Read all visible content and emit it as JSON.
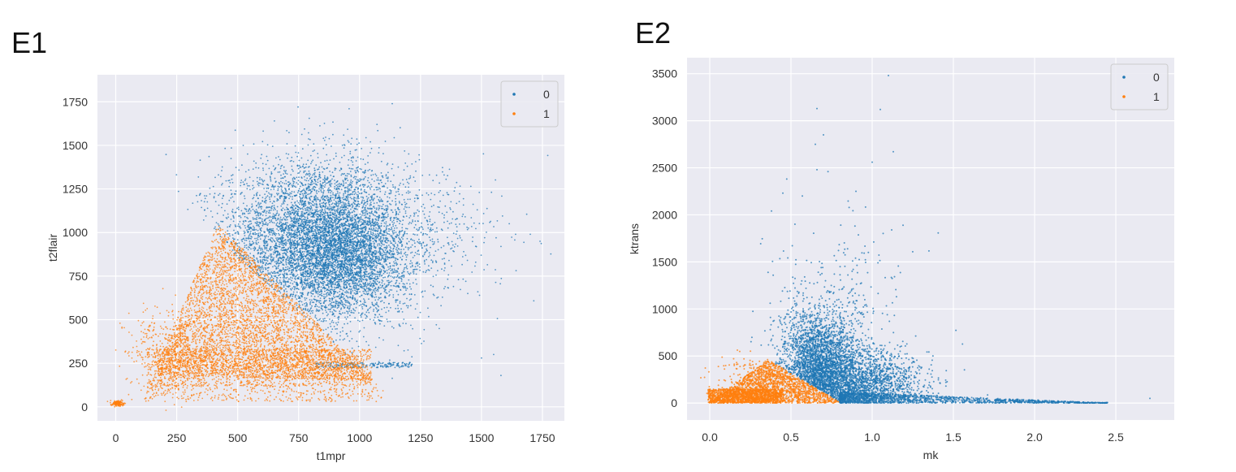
{
  "panels": [
    {
      "label": "E1"
    },
    {
      "label": "E2"
    }
  ],
  "chart_data": [
    {
      "type": "scatter",
      "title": "",
      "xlabel": "t1mpr",
      "ylabel": "t2flair",
      "xlim": [
        -75,
        1840
      ],
      "ylim": [
        -80,
        1905
      ],
      "xticks": [
        0,
        250,
        500,
        750,
        1000,
        1250,
        1500,
        1750
      ],
      "yticks": [
        0,
        250,
        500,
        750,
        1000,
        1250,
        1500,
        1750
      ],
      "grid": true,
      "legend": {
        "placement": "top-right"
      },
      "series": [
        {
          "name": "0",
          "color": "#1f77b4",
          "clusters": [
            {
              "kind": "gaussian",
              "center": [
                820,
                950
              ],
              "spread": [
                190,
                230
              ],
              "n": 5200,
              "rule": "above_line"
            },
            {
              "kind": "gaussian",
              "center": [
                950,
                850
              ],
              "spread": [
                110,
                160
              ],
              "n": 1800,
              "rule": "above_line"
            },
            {
              "kind": "uniform_band",
              "x": [
                820,
                1220
              ],
              "y": [
                225,
                255
              ],
              "n": 200,
              "rule": "none"
            },
            {
              "kind": "gaussian",
              "center": [
                1050,
                950
              ],
              "spread": [
                260,
                200
              ],
              "n": 1000,
              "rule": "above_line"
            },
            {
              "kind": "points",
              "points": [
                [
                  1700,
                  990
                ],
                [
                  1740,
                  950
                ],
                [
                  1640,
                  990
                ],
                [
                  1580,
                  920
                ],
                [
                  1560,
                  970
                ],
                [
                  1550,
                  300
                ],
                [
                  1500,
                  280
                ],
                [
                  1580,
                  180
                ]
              ]
            }
          ]
        },
        {
          "name": "1",
          "color": "#ff7f0e",
          "clusters": [
            {
              "kind": "triangle",
              "a": [
                150,
                180
              ],
              "b": [
                420,
                1050
              ],
              "c": [
                1060,
                150
              ],
              "n": 4200
            },
            {
              "kind": "uniform_band",
              "x": [
                130,
                1050
              ],
              "y": [
                120,
                330
              ],
              "n": 1300,
              "rule": "none"
            },
            {
              "kind": "gaussian",
              "center": [
                200,
                320
              ],
              "spread": [
                70,
                130
              ],
              "n": 400,
              "rule": "below_line"
            },
            {
              "kind": "gaussian",
              "center": [
                10,
                20
              ],
              "spread": [
                12,
                8
              ],
              "n": 150,
              "rule": "none"
            },
            {
              "kind": "uniform_band",
              "x": [
                120,
                1100
              ],
              "y": [
                30,
                130
              ],
              "n": 350,
              "rule": "none"
            }
          ]
        }
      ],
      "boundary": {
        "a": [
          390,
          1000
        ],
        "b": [
          1060,
          150
        ]
      }
    },
    {
      "type": "scatter",
      "title": "",
      "xlabel": "mk",
      "ylabel": "ktrans",
      "xlim": [
        -0.14,
        2.86
      ],
      "ylim": [
        -180,
        3670
      ],
      "xticks": [
        0.0,
        0.5,
        1.0,
        1.5,
        2.0,
        2.5
      ],
      "xtick_labels": [
        "0.0",
        "0.5",
        "1.0",
        "1.5",
        "2.0",
        "2.5"
      ],
      "yticks": [
        0,
        500,
        1000,
        1500,
        2000,
        2500,
        3000,
        3500
      ],
      "grid": true,
      "legend": {
        "placement": "top-right"
      },
      "series": [
        {
          "name": "0",
          "color": "#1f77b4",
          "clusters": [
            {
              "kind": "gaussian",
              "center": [
                0.68,
                350
              ],
              "spread": [
                0.12,
                300
              ],
              "n": 2600,
              "rule": "above_line"
            },
            {
              "kind": "gaussian",
              "center": [
                0.95,
                200
              ],
              "spread": [
                0.18,
                180
              ],
              "n": 1600,
              "rule": "above_line"
            },
            {
              "kind": "tail",
              "x": [
                0.8,
                2.45
              ],
              "y": [
                0,
                120
              ],
              "n": 1400
            },
            {
              "kind": "gaussian",
              "center": [
                0.75,
                900
              ],
              "spread": [
                0.2,
                500
              ],
              "n": 300,
              "rule": "above_line"
            },
            {
              "kind": "points",
              "points": [
                [
                  0.66,
                  3130
                ],
                [
                  1.1,
                  3480
                ],
                [
                  1.05,
                  3120
                ],
                [
                  1.13,
                  2670
                ],
                [
                  0.65,
                  2750
                ],
                [
                  0.7,
                  2850
                ],
                [
                  0.66,
                  2480
                ],
                [
                  1.0,
                  2560
                ],
                [
                  0.57,
                  2200
                ],
                [
                  0.45,
                  2230
                ],
                [
                  0.38,
                  2040
                ],
                [
                  0.9,
                  2250
                ],
                [
                  1.19,
                  1890
                ],
                [
                  1.12,
                  1840
                ],
                [
                  2.71,
                  50
                ]
              ]
            }
          ]
        },
        {
          "name": "1",
          "color": "#ff7f0e",
          "clusters": [
            {
              "kind": "triangle",
              "a": [
                -0.01,
                0
              ],
              "b": [
                0.36,
                460
              ],
              "c": [
                0.81,
                0
              ],
              "n": 1800
            },
            {
              "kind": "uniform_band",
              "x": [
                -0.01,
                0.45
              ],
              "y": [
                0,
                150
              ],
              "n": 1200,
              "rule": "none"
            },
            {
              "kind": "gaussian",
              "center": [
                0.25,
                300
              ],
              "spread": [
                0.12,
                150
              ],
              "n": 120,
              "rule": "below_line"
            }
          ]
        }
      ],
      "boundary": {
        "a": [
          0.36,
          460
        ],
        "b": [
          0.81,
          0
        ]
      }
    }
  ]
}
